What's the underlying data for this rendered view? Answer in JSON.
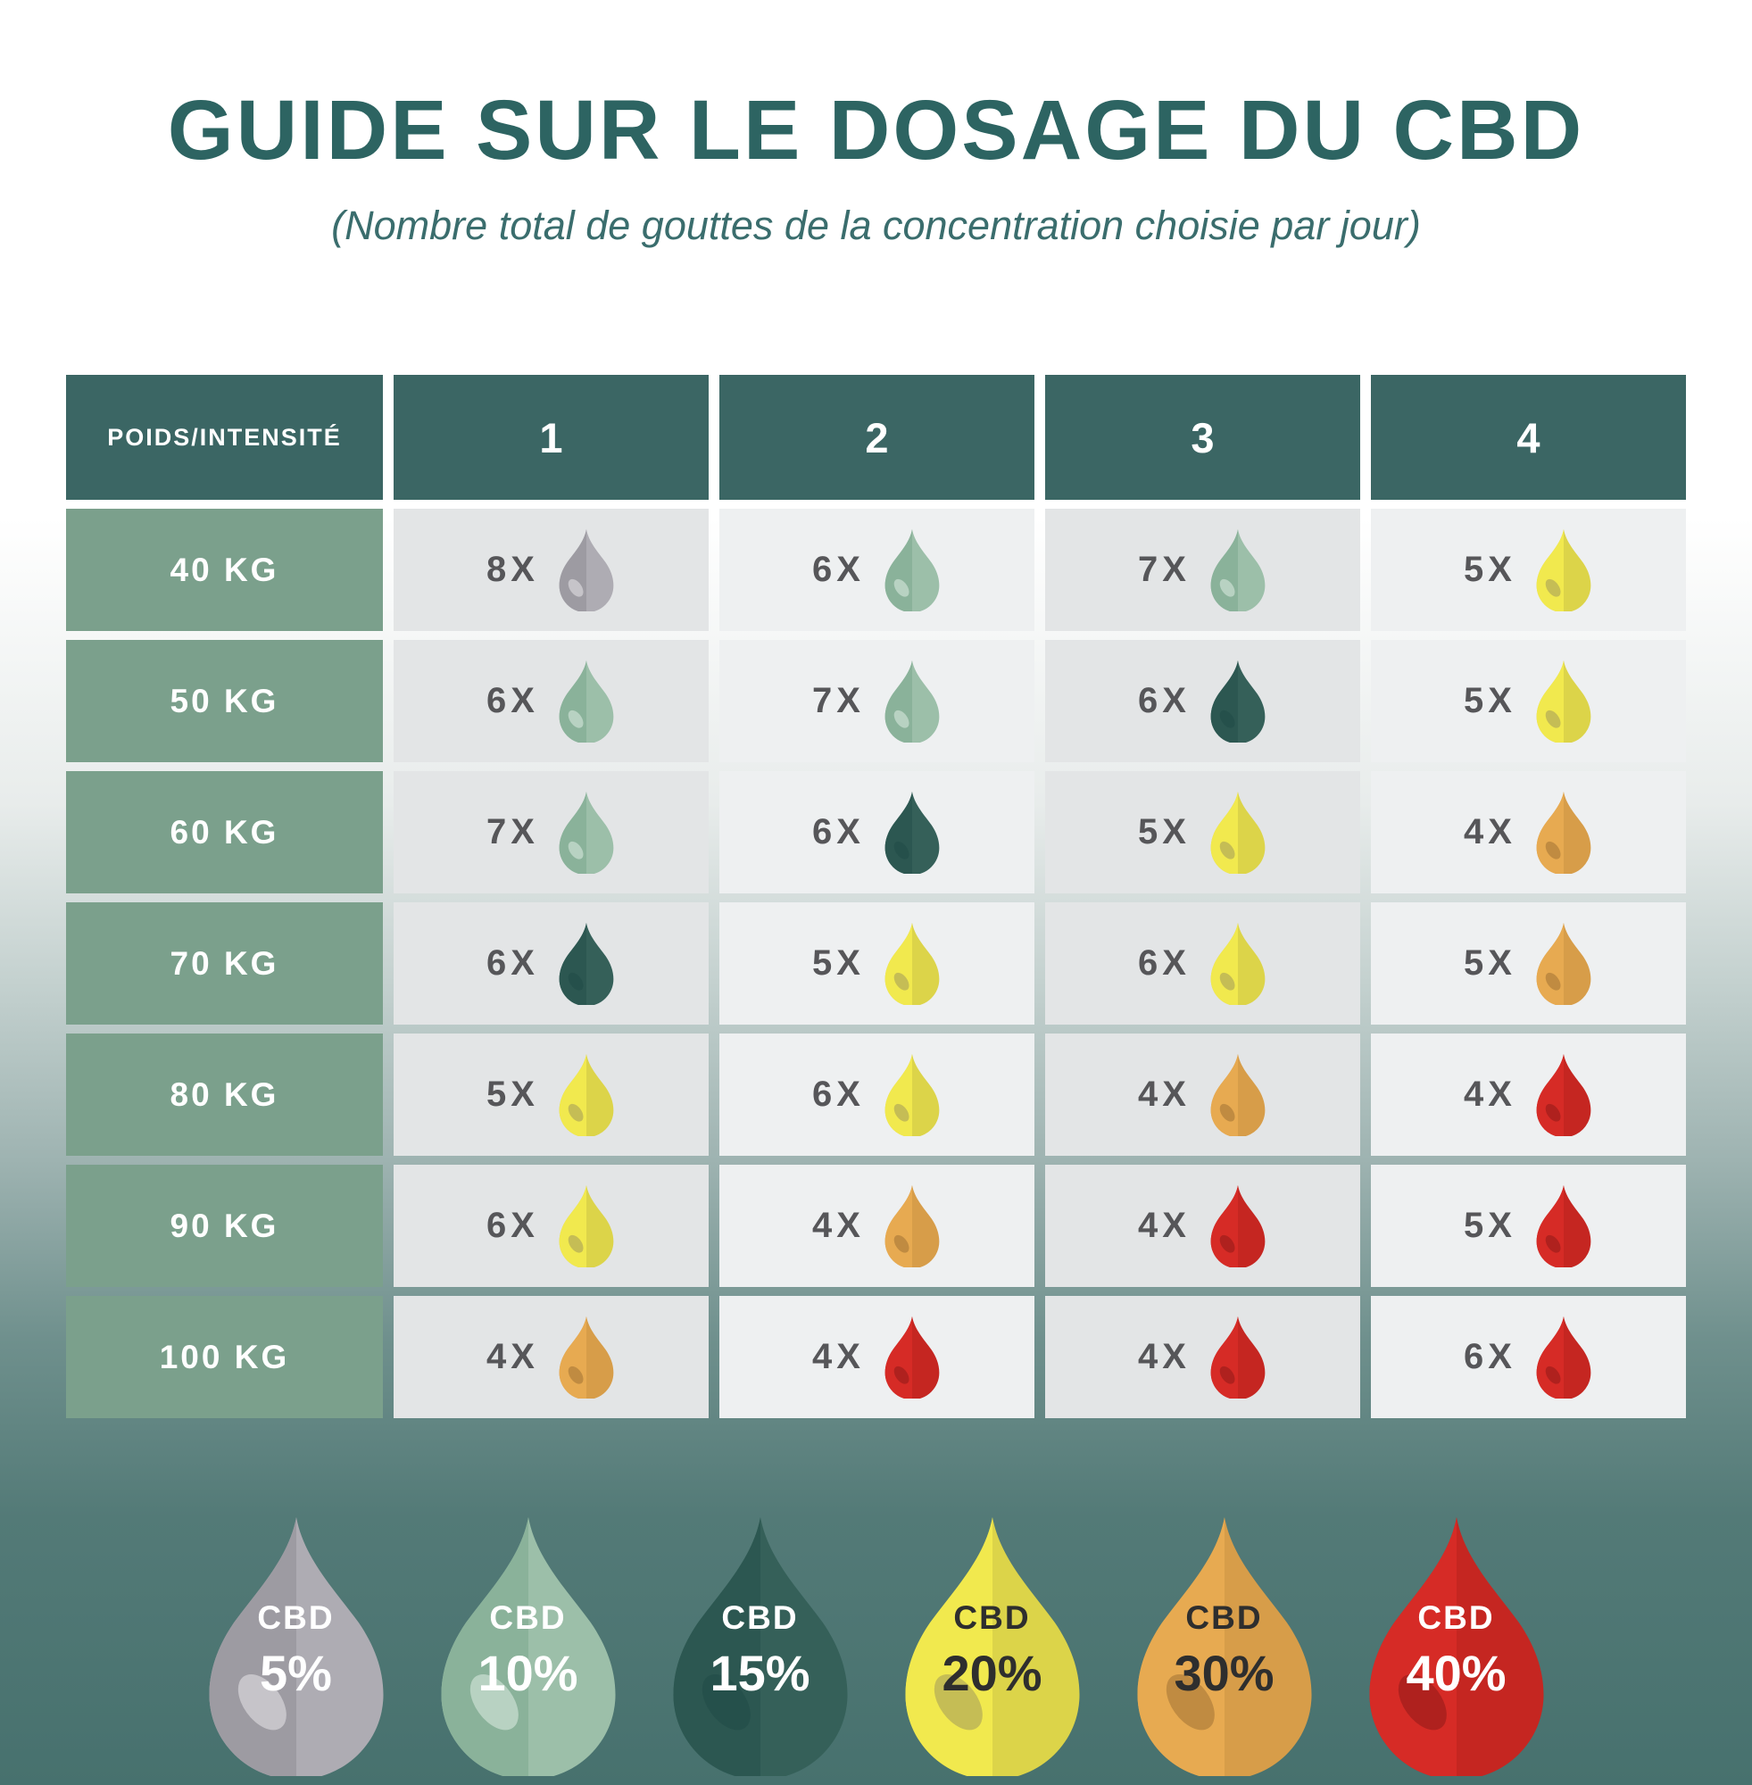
{
  "chart_data": {
    "type": "table",
    "title": "GUIDE SUR LE DOSAGE DU CBD",
    "subtitle": "(Nombre total de gouttes de la concentration choisie par jour)",
    "corner_header": "POIDS/INTENSITÉ",
    "intensity_columns": [
      "1",
      "2",
      "3",
      "4"
    ],
    "count_suffix": "X",
    "rows": [
      {
        "weight": "40 KG",
        "cells": [
          {
            "count": 8,
            "cbd": "5%"
          },
          {
            "count": 6,
            "cbd": "10%"
          },
          {
            "count": 7,
            "cbd": "10%"
          },
          {
            "count": 5,
            "cbd": "20%"
          }
        ]
      },
      {
        "weight": "50 KG",
        "cells": [
          {
            "count": 6,
            "cbd": "10%"
          },
          {
            "count": 7,
            "cbd": "10%"
          },
          {
            "count": 6,
            "cbd": "15%"
          },
          {
            "count": 5,
            "cbd": "20%"
          }
        ]
      },
      {
        "weight": "60 KG",
        "cells": [
          {
            "count": 7,
            "cbd": "10%"
          },
          {
            "count": 6,
            "cbd": "15%"
          },
          {
            "count": 5,
            "cbd": "20%"
          },
          {
            "count": 4,
            "cbd": "30%"
          }
        ]
      },
      {
        "weight": "70 KG",
        "cells": [
          {
            "count": 6,
            "cbd": "15%"
          },
          {
            "count": 5,
            "cbd": "20%"
          },
          {
            "count": 6,
            "cbd": "20%"
          },
          {
            "count": 5,
            "cbd": "30%"
          }
        ]
      },
      {
        "weight": "80 KG",
        "cells": [
          {
            "count": 5,
            "cbd": "20%"
          },
          {
            "count": 6,
            "cbd": "20%"
          },
          {
            "count": 4,
            "cbd": "30%"
          },
          {
            "count": 4,
            "cbd": "40%"
          }
        ]
      },
      {
        "weight": "90 KG",
        "cells": [
          {
            "count": 6,
            "cbd": "20%"
          },
          {
            "count": 4,
            "cbd": "30%"
          },
          {
            "count": 4,
            "cbd": "40%"
          },
          {
            "count": 5,
            "cbd": "40%"
          }
        ]
      },
      {
        "weight": "100 KG",
        "cells": [
          {
            "count": 4,
            "cbd": "30%"
          },
          {
            "count": 4,
            "cbd": "40%"
          },
          {
            "count": 4,
            "cbd": "40%"
          },
          {
            "count": 6,
            "cbd": "40%"
          }
        ]
      }
    ],
    "legend": [
      {
        "label": "CBD",
        "percent": "5%"
      },
      {
        "label": "CBD",
        "percent": "10%"
      },
      {
        "label": "CBD",
        "percent": "15%"
      },
      {
        "label": "CBD",
        "percent": "20%"
      },
      {
        "label": "CBD",
        "percent": "30%"
      },
      {
        "label": "CBD",
        "percent": "40%"
      }
    ]
  },
  "colors": {
    "title": "#2d6462",
    "subtitle": "#3a6d6d",
    "header_bg": "#3b6664",
    "row_label_bg": "#7ba08c",
    "cell_odd": "#e3e5e6",
    "cell_even": "#eef0f1",
    "count_text": "#565659",
    "bg_top": "#ffffff",
    "bg_bottom": "#47716e",
    "drops": {
      "5%": {
        "left": "#9d9ba2",
        "right": "#aeacb3",
        "swoosh": "#c6c4c9",
        "label_color": "#ffffff"
      },
      "10%": {
        "left": "#8ab29a",
        "right": "#9cbfa9",
        "swoosh": "#b8d2c2",
        "label_color": "#ffffff"
      },
      "15%": {
        "left": "#2c5751",
        "right": "#356059",
        "swoosh": "#25504b",
        "label_color": "#ffffff"
      },
      "20%": {
        "left": "#f1e94e",
        "right": "#dcd449",
        "swoosh": "#c5bd55",
        "label_color": "#2e2e2e"
      },
      "30%": {
        "left": "#e7aa51",
        "right": "#d79d49",
        "swoosh": "#c08b41",
        "label_color": "#2e2e2e"
      },
      "40%": {
        "left": "#d62b26",
        "right": "#c52621",
        "swoosh": "#af211e",
        "label_color": "#ffffff"
      }
    }
  }
}
